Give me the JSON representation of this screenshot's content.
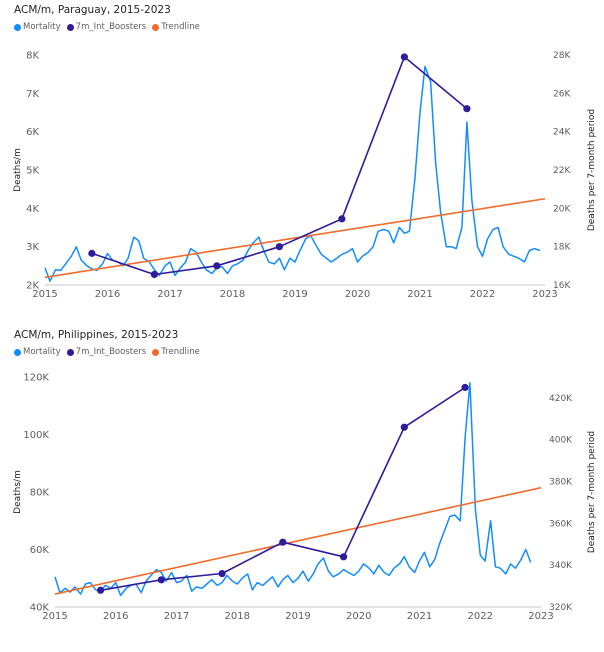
{
  "colors": {
    "mortality": "#118DFF",
    "boosters": "#2E1C9E",
    "trendline": "#F26B2A"
  },
  "chart_data": [
    {
      "type": "line",
      "title": "ACM/m, Paraguay, 2015-2023",
      "legend": [
        "Mortality",
        "7m_Int_Boosters",
        "Trendline"
      ],
      "ylabel": "Deaths/m",
      "y2label": "Deaths per 7-month period",
      "xlim": [
        2015,
        2023
      ],
      "ylim": [
        2000,
        8000
      ],
      "y2lim": [
        16000,
        28000
      ],
      "x_ticks": [
        "2015",
        "2016",
        "2017",
        "2018",
        "2019",
        "2020",
        "2021",
        "2022",
        "2023"
      ],
      "y_ticks": [
        "2K",
        "3K",
        "4K",
        "5K",
        "6K",
        "7K",
        "8K"
      ],
      "y_tick_values": [
        2000,
        3000,
        4000,
        5000,
        6000,
        7000,
        8000
      ],
      "y2_ticks": [
        "16K",
        "18K",
        "20K",
        "22K",
        "24K",
        "26K",
        "28K"
      ],
      "y2_tick_values": [
        16000,
        18000,
        20000,
        22000,
        24000,
        26000,
        28000
      ],
      "series": [
        {
          "name": "Mortality",
          "axis": "left",
          "x": [
            2015.0,
            2015.08,
            2015.17,
            2015.25,
            2015.33,
            2015.42,
            2015.5,
            2015.58,
            2015.67,
            2015.75,
            2015.83,
            2015.92,
            2016.0,
            2016.08,
            2016.17,
            2016.25,
            2016.33,
            2016.42,
            2016.5,
            2016.58,
            2016.67,
            2016.75,
            2016.83,
            2016.92,
            2017.0,
            2017.08,
            2017.17,
            2017.25,
            2017.33,
            2017.42,
            2017.5,
            2017.58,
            2017.67,
            2017.75,
            2017.83,
            2017.92,
            2018.0,
            2018.08,
            2018.17,
            2018.25,
            2018.33,
            2018.42,
            2018.5,
            2018.58,
            2018.67,
            2018.75,
            2018.83,
            2018.92,
            2019.0,
            2019.08,
            2019.17,
            2019.25,
            2019.33,
            2019.42,
            2019.5,
            2019.58,
            2019.67,
            2019.75,
            2019.83,
            2019.92,
            2020.0,
            2020.08,
            2020.17,
            2020.25,
            2020.33,
            2020.42,
            2020.5,
            2020.58,
            2020.67,
            2020.75,
            2020.83,
            2020.92,
            2021.0,
            2021.08,
            2021.17,
            2021.25,
            2021.33,
            2021.42,
            2021.5,
            2021.58,
            2021.67,
            2021.75,
            2021.83,
            2021.92,
            2022.0,
            2022.08,
            2022.17,
            2022.25,
            2022.33,
            2022.42,
            2022.5,
            2022.58,
            2022.67,
            2022.75,
            2022.83,
            2022.92
          ],
          "y": [
            2450,
            2100,
            2400,
            2380,
            2550,
            2750,
            3000,
            2650,
            2500,
            2420,
            2380,
            2550,
            2820,
            2650,
            2600,
            2500,
            2700,
            3250,
            3150,
            2700,
            2600,
            2400,
            2250,
            2500,
            2600,
            2250,
            2450,
            2600,
            2950,
            2850,
            2600,
            2400,
            2300,
            2450,
            2480,
            2300,
            2500,
            2550,
            2650,
            2900,
            3100,
            3250,
            2900,
            2600,
            2550,
            2700,
            2400,
            2700,
            2600,
            2900,
            3200,
            3300,
            3050,
            2800,
            2700,
            2600,
            2700,
            2800,
            2850,
            2950,
            2600,
            2750,
            2850,
            3000,
            3400,
            3450,
            3400,
            3100,
            3500,
            3350,
            3400,
            4800,
            6500,
            7700,
            7300,
            5200,
            3900,
            3000,
            3000,
            2950,
            3500,
            6250,
            4200,
            3000,
            2750,
            3200,
            3450,
            3500,
            3000,
            2800,
            2750,
            2700,
            2600,
            2900,
            2950,
            2900
          ]
        },
        {
          "name": "7m_Int_Boosters",
          "axis": "right",
          "x": [
            2015.75,
            2016.75,
            2017.75,
            2018.75,
            2019.75,
            2020.75,
            2021.75
          ],
          "y": [
            17650,
            16550,
            17000,
            18000,
            19450,
            27900,
            25200
          ]
        },
        {
          "name": "Trendline",
          "axis": "left",
          "x": [
            2015.0,
            2023.0
          ],
          "y": [
            2200,
            4250
          ]
        }
      ]
    },
    {
      "type": "line",
      "title": "ACM/m, Philippines, 2015-2023",
      "legend": [
        "Mortality",
        "7m_Int_Boosters",
        "Trendline"
      ],
      "ylabel": "Deaths/m",
      "y2label": "Deaths per 7-month period",
      "xlim": [
        2015,
        2023
      ],
      "ylim": [
        40000,
        120000
      ],
      "y2lim": [
        320000,
        430000
      ],
      "x_ticks": [
        "2015",
        "2016",
        "2017",
        "2018",
        "2019",
        "2020",
        "2021",
        "2022",
        "2023"
      ],
      "y_ticks": [
        "40K",
        "60K",
        "80K",
        "100K",
        "120K"
      ],
      "y_tick_values": [
        40000,
        60000,
        80000,
        100000,
        120000
      ],
      "y2_ticks": [
        "320K",
        "340K",
        "360K",
        "380K",
        "400K",
        "420K"
      ],
      "y2_tick_values": [
        320000,
        340000,
        360000,
        380000,
        400000,
        420000
      ],
      "series": [
        {
          "name": "Mortality",
          "axis": "left",
          "x": [
            2015.0,
            2015.08,
            2015.17,
            2015.25,
            2015.33,
            2015.42,
            2015.5,
            2015.58,
            2015.67,
            2015.75,
            2015.83,
            2015.92,
            2016.0,
            2016.08,
            2016.17,
            2016.25,
            2016.33,
            2016.42,
            2016.5,
            2016.58,
            2016.67,
            2016.75,
            2016.83,
            2016.92,
            2017.0,
            2017.08,
            2017.17,
            2017.25,
            2017.33,
            2017.42,
            2017.5,
            2017.58,
            2017.67,
            2017.75,
            2017.83,
            2017.92,
            2018.0,
            2018.08,
            2018.17,
            2018.25,
            2018.33,
            2018.42,
            2018.5,
            2018.58,
            2018.67,
            2018.75,
            2018.83,
            2018.92,
            2019.0,
            2019.08,
            2019.17,
            2019.25,
            2019.33,
            2019.42,
            2019.5,
            2019.58,
            2019.67,
            2019.75,
            2019.83,
            2019.92,
            2020.0,
            2020.08,
            2020.17,
            2020.25,
            2020.33,
            2020.42,
            2020.5,
            2020.58,
            2020.67,
            2020.75,
            2020.83,
            2020.92,
            2021.0,
            2021.08,
            2021.17,
            2021.25,
            2021.33,
            2021.42,
            2021.5,
            2021.58,
            2021.67,
            2021.75,
            2021.83,
            2021.92,
            2022.0,
            2022.08,
            2022.17,
            2022.25,
            2022.33,
            2022.42,
            2022.5,
            2022.58,
            2022.67,
            2022.75,
            2022.83
          ],
          "y": [
            50500,
            45000,
            46500,
            45200,
            47000,
            44500,
            48000,
            48500,
            46000,
            45500,
            47500,
            46500,
            48500,
            44000,
            46500,
            47500,
            48000,
            45000,
            49000,
            51000,
            53000,
            52000,
            49000,
            52000,
            48500,
            49000,
            51000,
            45500,
            47000,
            46500,
            48000,
            49500,
            47500,
            48500,
            51000,
            49000,
            48000,
            50000,
            51500,
            46000,
            48500,
            47500,
            49000,
            50500,
            47000,
            49500,
            51000,
            48500,
            50000,
            52500,
            49000,
            51500,
            55000,
            57000,
            52500,
            50500,
            51500,
            53000,
            52000,
            51000,
            52500,
            55000,
            53500,
            51500,
            54500,
            52000,
            51000,
            53500,
            55000,
            57500,
            54000,
            52000,
            56000,
            59000,
            54000,
            56500,
            62000,
            67000,
            71500,
            72000,
            70000,
            99000,
            118000,
            74000,
            58000,
            56000,
            70000,
            54000,
            53500,
            51500,
            55000,
            53500,
            56500,
            60000,
            55500
          ]
        },
        {
          "name": "7m_Int_Boosters",
          "axis": "right",
          "x": [
            2015.75,
            2016.75,
            2017.75,
            2018.75,
            2019.75,
            2020.75,
            2021.75
          ],
          "y": [
            328000,
            333000,
            336000,
            351000,
            344000,
            406000,
            425000
          ]
        },
        {
          "name": "Trendline",
          "axis": "left",
          "x": [
            2015.0,
            2023.0
          ],
          "y": [
            44500,
            81500
          ]
        }
      ]
    }
  ]
}
